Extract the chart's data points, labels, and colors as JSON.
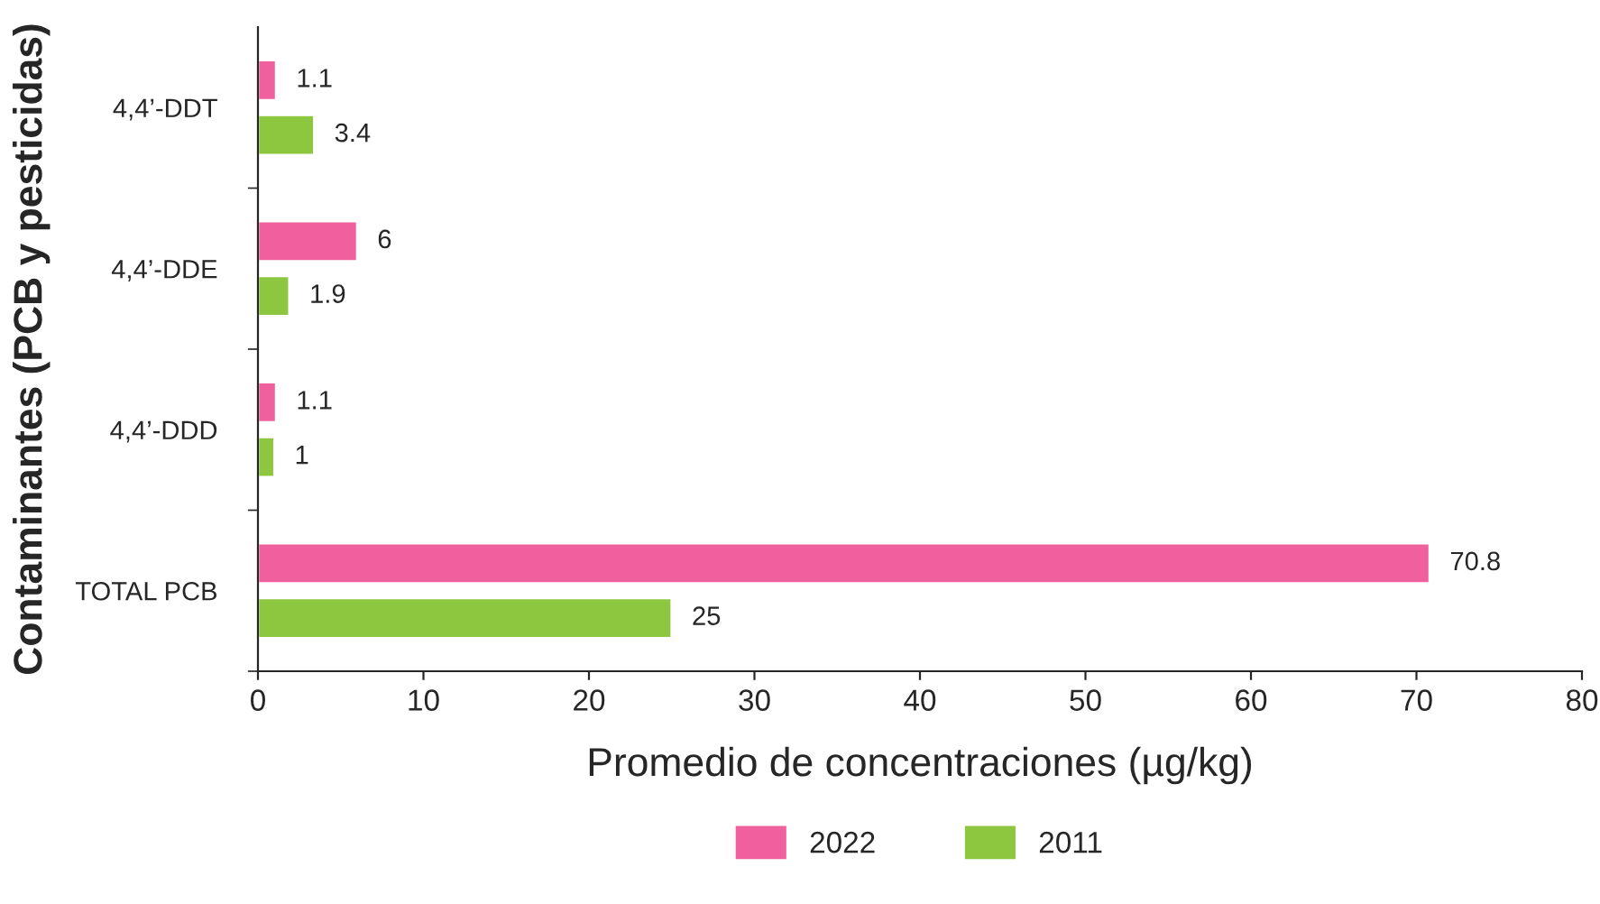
{
  "chart_data": {
    "type": "bar",
    "orientation": "horizontal",
    "xlabel": "Promedio de concentraciones (µg/kg)",
    "ylabel": "Contaminantes (PCB y pesticidas)",
    "categories": [
      "4,4’-DDT",
      "4,4’-DDE",
      "4,4’-DDD",
      "TOTAL PCB"
    ],
    "series": [
      {
        "name": "2022",
        "color": "#f0609e",
        "values": [
          1.1,
          6,
          1.1,
          70.8
        ]
      },
      {
        "name": "2011",
        "color": "#8dc63f",
        "values": [
          3.4,
          1.9,
          1,
          25
        ]
      }
    ],
    "xlim": [
      0,
      80
    ],
    "xticks": [
      0,
      10,
      20,
      30,
      40,
      50,
      60,
      70,
      80
    ],
    "data_labels": true,
    "legend": "bottom",
    "grid": false
  }
}
